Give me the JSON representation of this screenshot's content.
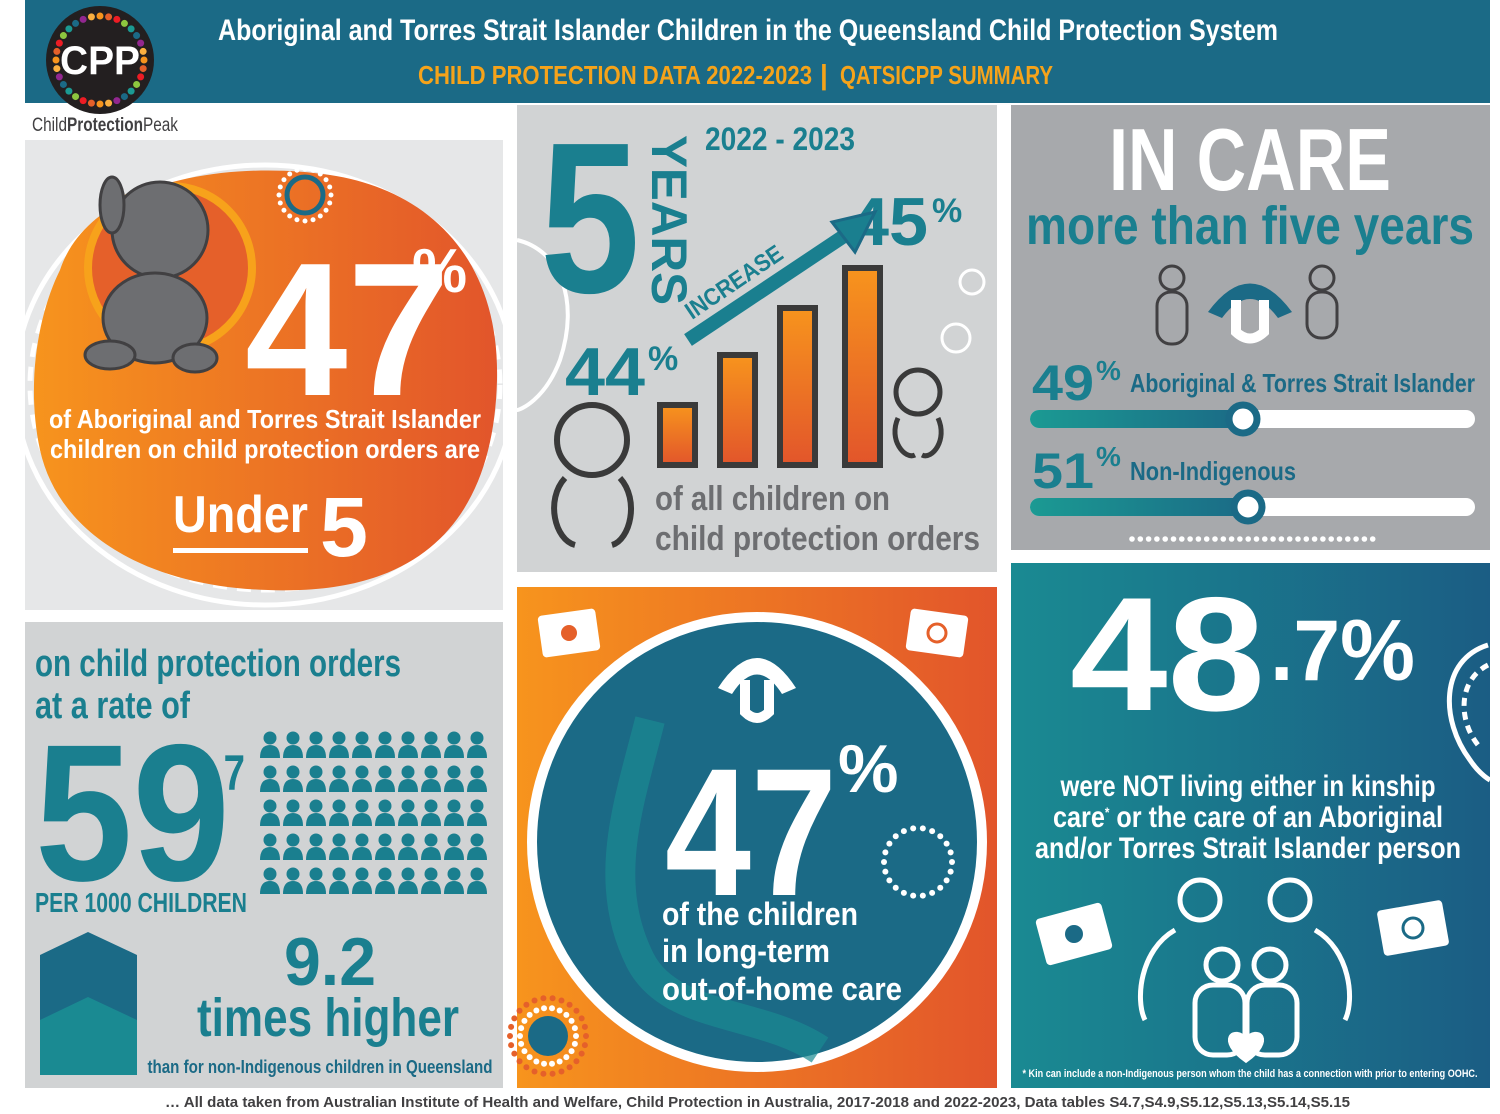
{
  "header": {
    "logo": "CPP",
    "brand_1": "Child",
    "brand_2": "Protection",
    "brand_3": "Peak",
    "title": "Aboriginal and Torres Strait Islander Children in the Queensland Child Protection System",
    "subtitle": "CHILD PROTECTION DATA 2022-2023",
    "separator": "|",
    "subtitle_2": "QATSICPP SUMMARY"
  },
  "under_five": {
    "value": "47",
    "unit": "%",
    "lines": [
      "of Aboriginal and Torres Strait Islander",
      "children on child protection orders are"
    ],
    "under": "Under",
    "five": "5"
  },
  "trend": {
    "big": "5",
    "years": "YEARS",
    "period": "2022 - 2023",
    "label": "INCREASE",
    "end": "45",
    "end_unit": "%",
    "start": "44",
    "start_unit": "%",
    "lines": [
      "of all children on",
      "child protection orders"
    ]
  },
  "in_care": {
    "title": "IN CARE",
    "subtitle": "more than five years",
    "groups": [
      {
        "value": "49",
        "unit": "%",
        "label": "Aboriginal & Torres Strait Islander"
      },
      {
        "value": "51",
        "unit": "%",
        "label": "Non-Indigenous"
      }
    ]
  },
  "rate": {
    "lines": [
      "on child protection orders",
      "at a rate of"
    ],
    "value": "59",
    "decimal": ".7",
    "unit": "PER 1000 CHILDREN",
    "multiple": "9.2",
    "multiple_label": "times higher",
    "comparison": "than for non-Indigenous children in Queensland"
  },
  "long_term": {
    "value": "47",
    "unit": "%",
    "lines": [
      "of the children",
      "in long-term",
      "out-of-home care"
    ]
  },
  "not_kin": {
    "value": "48",
    "decimal": ".7%",
    "line_1": "were NOT living either in kinship",
    "line_2a": "care",
    "asterisk": "*",
    "line_2b": " or the care of an Aboriginal",
    "line_3": "and/or Torres Strait Islander person",
    "footnote": "* Kin can include a non-Indigenous person whom the child has a connection with prior to entering OOHC."
  },
  "footer": "… All data taken from Australian Institute of Health and Welfare, Child Protection in Australia, 2017-2018 and 2022-2023, Data tables S4.7,S4.9,S5.12,S5.13,S5.14,S5.15"
}
